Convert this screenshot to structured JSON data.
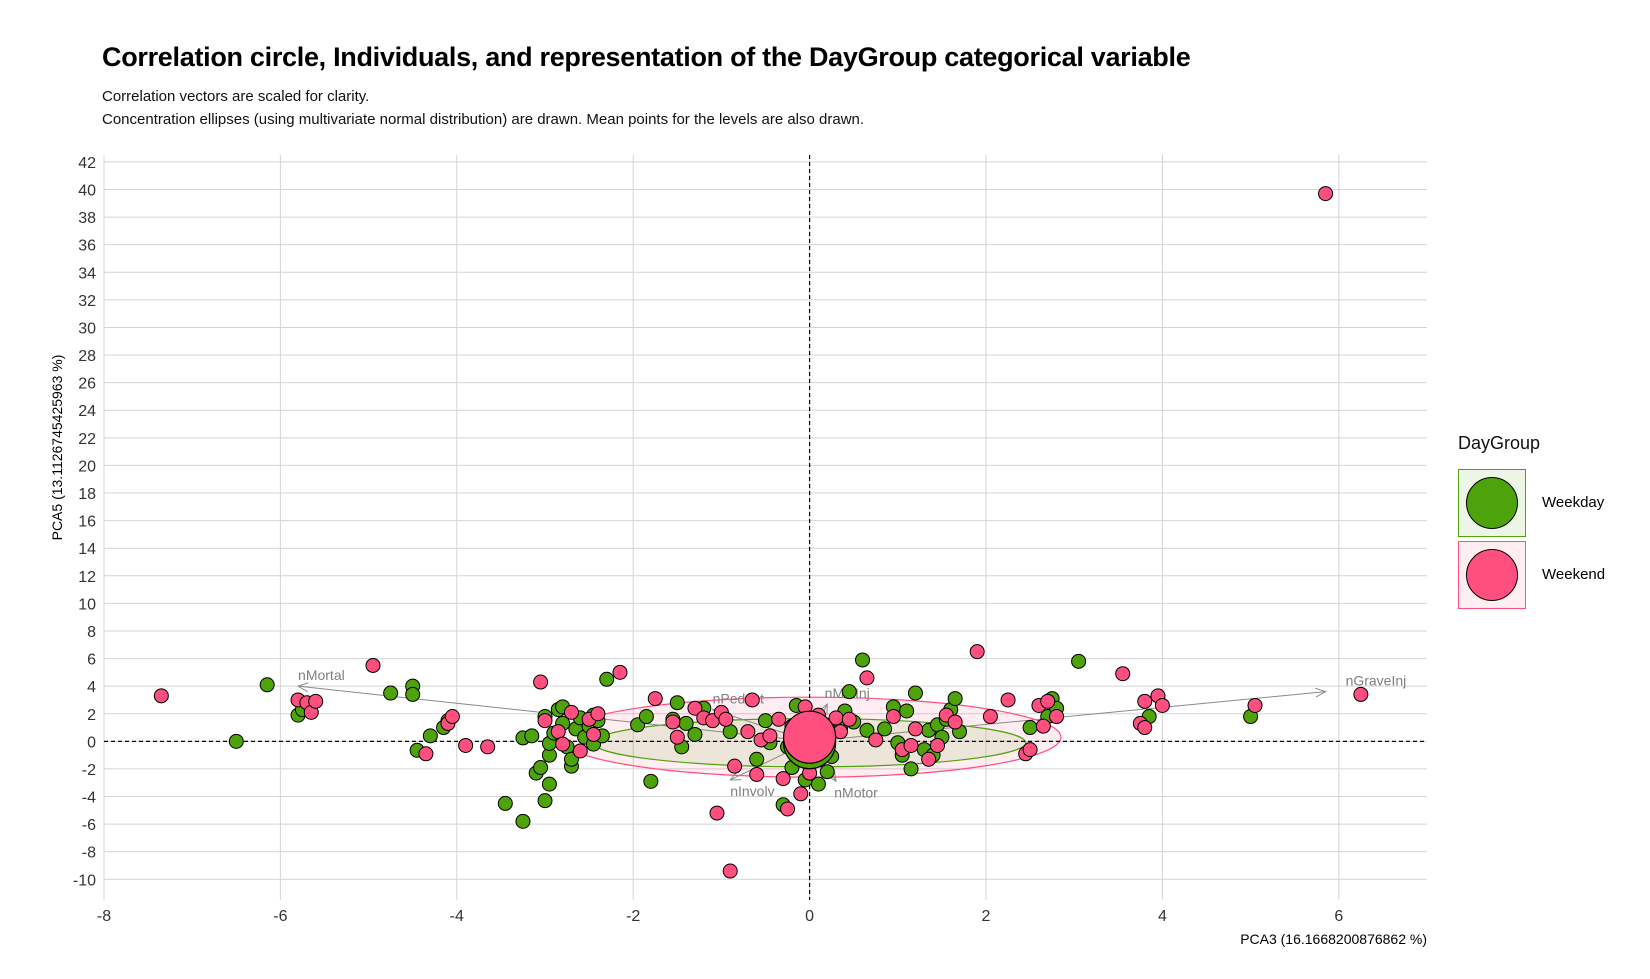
{
  "chart_data": {
    "type": "scatter",
    "title": "Correlation circle, Individuals, and representation of the DayGroup categorical variable",
    "subtitle": [
      "Correlation vectors are scaled for clarity.",
      "Concentration ellipses (using multivariate normal distribution) are drawn. Mean points for the levels are also drawn."
    ],
    "xlabel": "PCA3 (16.1668200876862 %)",
    "ylabel": "PCA5 (13.1126745425963 %)",
    "xlim": [
      -8,
      7
    ],
    "ylim": [
      -11.5,
      42.5
    ],
    "x_ticks": [
      -8,
      -6,
      -4,
      -2,
      0,
      2,
      4,
      6
    ],
    "y_ticks": [
      -10,
      -8,
      -6,
      -4,
      -2,
      0,
      2,
      4,
      6,
      8,
      10,
      12,
      14,
      16,
      18,
      20,
      22,
      24,
      26,
      28,
      30,
      32,
      34,
      36,
      38,
      40,
      42
    ],
    "grid": true,
    "reference_lines": {
      "x": 0,
      "y": 0,
      "style": "dashed"
    },
    "legend": {
      "title": "DayGroup",
      "position": "right",
      "entries": [
        {
          "label": "Weekday",
          "color": "#4ea30b"
        },
        {
          "label": "Weekend",
          "color": "#ff4f7f"
        }
      ]
    },
    "vectors": [
      {
        "label": "nMortal",
        "x": -5.8,
        "y": 4.0
      },
      {
        "label": "nGraveInj",
        "x": 5.85,
        "y": 3.6
      },
      {
        "label": "nPedest",
        "x": -1.1,
        "y": 2.3
      },
      {
        "label": "nMinInj",
        "x": 0.2,
        "y": 2.7
      },
      {
        "label": "nInvolv",
        "x": -0.9,
        "y": -2.8
      },
      {
        "label": "nMotor",
        "x": 0.3,
        "y": -2.9
      }
    ],
    "ellipses": [
      {
        "group": "Weekend",
        "center": [
          0.0,
          0.3
        ],
        "half_width": 2.85,
        "half_height": 2.9
      },
      {
        "group": "Weekday",
        "center": [
          0.0,
          -0.1
        ],
        "half_width": 2.45,
        "half_height": 1.75
      }
    ],
    "mean_points": [
      {
        "group": "Weekday",
        "x": 0.0,
        "y": -0.1
      },
      {
        "group": "Weekend",
        "x": 0.0,
        "y": 0.3
      }
    ],
    "series": [
      {
        "name": "Weekday",
        "points": [
          [
            -6.5,
            0
          ],
          [
            -6.15,
            4.1
          ],
          [
            -5.8,
            1.9
          ],
          [
            -5.75,
            2.3
          ],
          [
            -4.75,
            3.5
          ],
          [
            -4.5,
            4.0
          ],
          [
            -4.5,
            3.4
          ],
          [
            -4.45,
            -0.65
          ],
          [
            -4.3,
            0.4
          ],
          [
            -4.15,
            1.0
          ],
          [
            -4.1,
            1.5
          ],
          [
            -3.45,
            -4.5
          ],
          [
            -3.25,
            -5.8
          ],
          [
            -3.25,
            0.25
          ],
          [
            -3.15,
            0.4
          ],
          [
            -3.1,
            -2.3
          ],
          [
            -3.05,
            -1.9
          ],
          [
            -3.0,
            -4.3
          ],
          [
            -3.0,
            1.8
          ],
          [
            -2.95,
            -3.1
          ],
          [
            -2.95,
            -1.0
          ],
          [
            -2.95,
            -0.15
          ],
          [
            -2.9,
            0.6
          ],
          [
            -2.85,
            2.3
          ],
          [
            -2.8,
            2.5
          ],
          [
            -2.8,
            1.3
          ],
          [
            -2.75,
            -0.4
          ],
          [
            -2.7,
            -1.8
          ],
          [
            -2.7,
            -1.3
          ],
          [
            -2.65,
            0.9
          ],
          [
            -2.6,
            1.7
          ],
          [
            -2.55,
            0.3
          ],
          [
            -2.5,
            1.1
          ],
          [
            -2.45,
            -0.2
          ],
          [
            -2.45,
            1.9
          ],
          [
            -2.4,
            1.5
          ],
          [
            -2.35,
            0.4
          ],
          [
            -2.3,
            4.5
          ],
          [
            -1.95,
            1.2
          ],
          [
            -1.85,
            1.8
          ],
          [
            -1.8,
            -2.9
          ],
          [
            -1.55,
            1.6
          ],
          [
            -1.5,
            2.8
          ],
          [
            -1.45,
            -0.4
          ],
          [
            -1.4,
            1.3
          ],
          [
            -1.3,
            0.5
          ],
          [
            -1.2,
            2.4
          ],
          [
            -0.9,
            0.7
          ],
          [
            -0.6,
            -1.3
          ],
          [
            -0.5,
            1.5
          ],
          [
            -0.45,
            -0.1
          ],
          [
            -0.3,
            -4.6
          ],
          [
            -0.25,
            -0.4
          ],
          [
            -0.2,
            -1.9
          ],
          [
            -0.15,
            2.6
          ],
          [
            -0.1,
            0.6
          ],
          [
            -0.05,
            -2.8
          ],
          [
            0.0,
            1.2
          ],
          [
            0.05,
            -0.7
          ],
          [
            0.1,
            -3.1
          ],
          [
            0.15,
            0.0
          ],
          [
            0.2,
            -2.2
          ],
          [
            0.25,
            -1.1
          ],
          [
            0.3,
            1.6
          ],
          [
            0.35,
            0.9
          ],
          [
            0.4,
            2.2
          ],
          [
            0.45,
            3.6
          ],
          [
            0.5,
            1.4
          ],
          [
            0.6,
            5.9
          ],
          [
            0.65,
            0.8
          ],
          [
            0.85,
            0.9
          ],
          [
            0.95,
            2.5
          ],
          [
            1.0,
            -0.1
          ],
          [
            1.05,
            -1.0
          ],
          [
            1.1,
            2.2
          ],
          [
            1.15,
            -2.0
          ],
          [
            1.2,
            3.5
          ],
          [
            1.3,
            -0.6
          ],
          [
            1.35,
            0.8
          ],
          [
            1.4,
            -1.0
          ],
          [
            1.45,
            1.2
          ],
          [
            1.5,
            0.3
          ],
          [
            1.55,
            1.6
          ],
          [
            1.6,
            2.3
          ],
          [
            1.65,
            3.1
          ],
          [
            1.7,
            0.7
          ],
          [
            2.5,
            1.0
          ],
          [
            2.7,
            1.8
          ],
          [
            2.75,
            3.1
          ],
          [
            2.8,
            2.4
          ],
          [
            3.05,
            5.8
          ],
          [
            3.85,
            1.8
          ],
          [
            5.0,
            1.8
          ]
        ]
      },
      {
        "name": "Weekend",
        "points": [
          [
            -7.35,
            3.3
          ],
          [
            -5.8,
            3.0
          ],
          [
            -5.7,
            2.8
          ],
          [
            -5.65,
            2.1
          ],
          [
            -5.6,
            2.9
          ],
          [
            -4.95,
            5.5
          ],
          [
            -4.35,
            -0.9
          ],
          [
            -4.1,
            1.3
          ],
          [
            -4.05,
            1.8
          ],
          [
            -3.9,
            -0.3
          ],
          [
            -3.65,
            -0.4
          ],
          [
            -3.05,
            4.3
          ],
          [
            -3.0,
            1.5
          ],
          [
            -2.85,
            0.7
          ],
          [
            -2.8,
            -0.2
          ],
          [
            -2.7,
            2.1
          ],
          [
            -2.6,
            -0.7
          ],
          [
            -2.5,
            1.6
          ],
          [
            -2.45,
            0.5
          ],
          [
            -2.4,
            2.0
          ],
          [
            -2.15,
            5.0
          ],
          [
            -1.75,
            3.1
          ],
          [
            -1.55,
            1.4
          ],
          [
            -1.5,
            0.3
          ],
          [
            -1.3,
            2.4
          ],
          [
            -1.2,
            1.7
          ],
          [
            -1.1,
            1.5
          ],
          [
            -1.05,
            -5.2
          ],
          [
            -1.0,
            2.1
          ],
          [
            -0.95,
            1.6
          ],
          [
            -0.9,
            -9.4
          ],
          [
            -0.85,
            -1.8
          ],
          [
            -0.7,
            0.7
          ],
          [
            -0.65,
            3.0
          ],
          [
            -0.6,
            -2.4
          ],
          [
            -0.55,
            0.1
          ],
          [
            -0.45,
            0.4
          ],
          [
            -0.35,
            1.6
          ],
          [
            -0.3,
            -2.7
          ],
          [
            -0.25,
            -4.9
          ],
          [
            -0.2,
            1.1
          ],
          [
            -0.15,
            0.2
          ],
          [
            -0.1,
            -3.8
          ],
          [
            -0.05,
            2.5
          ],
          [
            0.0,
            -2.3
          ],
          [
            0.05,
            -1.3
          ],
          [
            0.1,
            1.9
          ],
          [
            0.15,
            -0.5
          ],
          [
            0.3,
            1.7
          ],
          [
            0.35,
            0.7
          ],
          [
            0.45,
            1.6
          ],
          [
            0.65,
            4.6
          ],
          [
            0.75,
            0.1
          ],
          [
            0.95,
            1.8
          ],
          [
            1.05,
            -0.6
          ],
          [
            1.15,
            -0.3
          ],
          [
            1.2,
            0.9
          ],
          [
            1.35,
            -1.3
          ],
          [
            1.45,
            -0.3
          ],
          [
            1.55,
            1.9
          ],
          [
            1.65,
            1.4
          ],
          [
            1.9,
            6.5
          ],
          [
            2.05,
            1.8
          ],
          [
            2.25,
            3.0
          ],
          [
            2.45,
            -0.9
          ],
          [
            2.5,
            -0.6
          ],
          [
            2.6,
            2.6
          ],
          [
            2.65,
            1.1
          ],
          [
            2.7,
            2.9
          ],
          [
            2.8,
            1.8
          ],
          [
            3.55,
            4.9
          ],
          [
            3.75,
            1.3
          ],
          [
            3.8,
            1.0
          ],
          [
            3.8,
            2.9
          ],
          [
            3.95,
            3.3
          ],
          [
            4.0,
            2.6
          ],
          [
            5.05,
            2.6
          ],
          [
            5.85,
            39.7
          ],
          [
            6.25,
            3.4
          ]
        ]
      }
    ]
  }
}
